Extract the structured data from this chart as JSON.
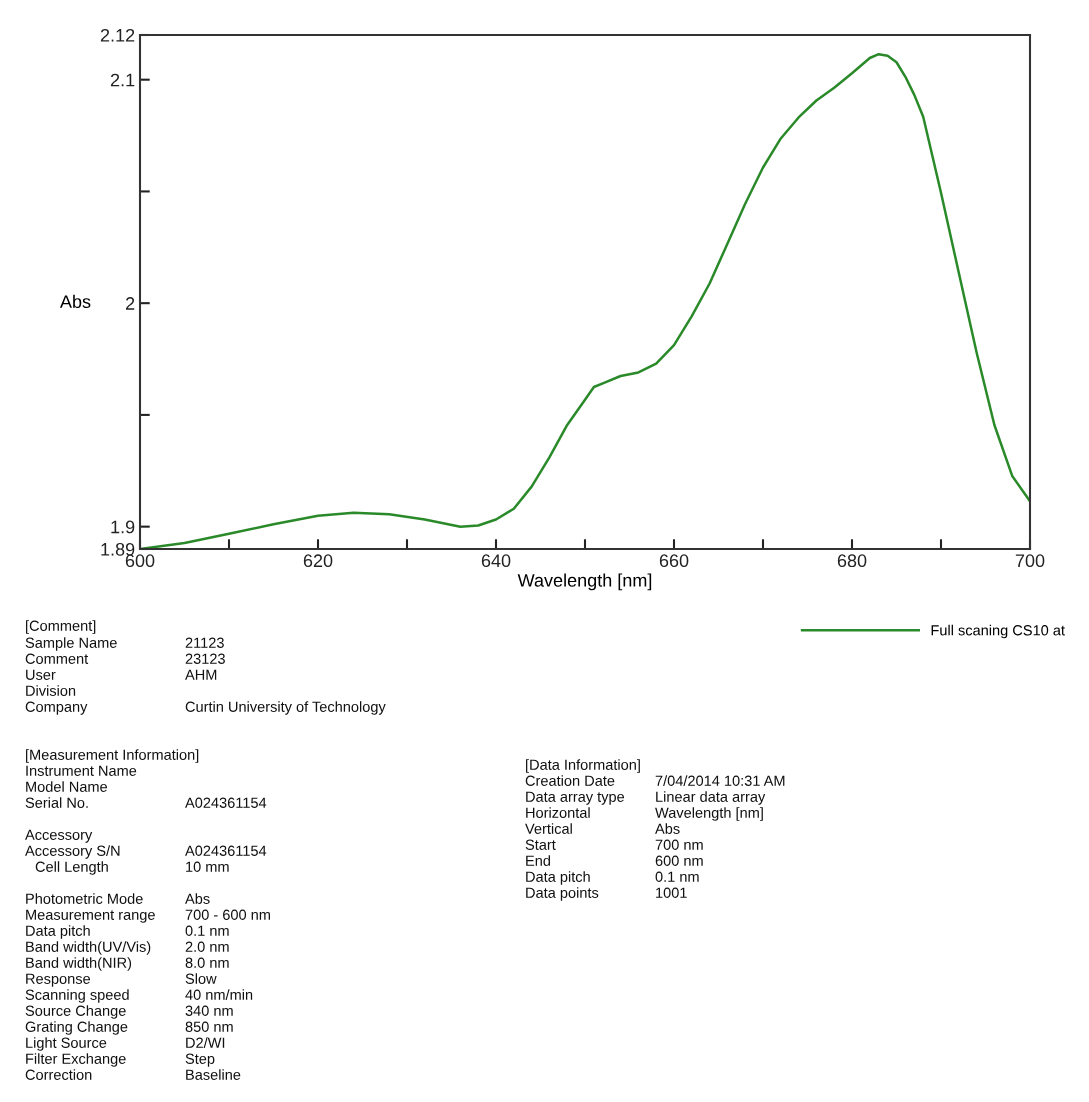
{
  "chart_data": {
    "type": "line",
    "xlabel": "Wavelength [nm]",
    "ylabel": "Abs",
    "xlim": [
      600,
      700
    ],
    "ylim": [
      1.89,
      2.12
    ],
    "xticks": [
      600,
      {
        "value": 610,
        "label": null
      },
      620,
      {
        "value": 630,
        "label": null
      },
      640,
      {
        "value": 650,
        "label": null
      },
      660,
      {
        "value": 670,
        "label": null
      },
      680,
      {
        "value": 690,
        "label": null
      },
      700
    ],
    "yticks": [
      1.89,
      1.9,
      {
        "value": 1.95,
        "label": null
      },
      2,
      {
        "value": 2.05,
        "label": null
      },
      2.1,
      2.12
    ],
    "grid": false,
    "legend": "bottom right",
    "marker": "none",
    "line_style": "solid",
    "series": [
      {
        "name": "Full scaning CS10 at",
        "color": "#2a8a2a",
        "x": [
          600,
          605,
          610,
          615,
          620,
          624,
          628,
          632,
          636,
          638,
          640,
          642,
          644,
          646,
          648,
          650,
          651,
          652,
          654,
          656,
          658,
          660,
          662,
          664,
          666,
          668,
          670,
          672,
          674,
          676,
          678,
          680,
          682,
          683,
          684,
          685,
          686,
          687,
          688,
          690,
          692,
          694,
          696,
          698,
          700
        ],
        "values": [
          1.89,
          1.8927,
          1.8968,
          1.9011,
          1.9049,
          1.9062,
          1.9055,
          1.9032,
          1.9,
          1.9005,
          1.9032,
          1.908,
          1.9179,
          1.931,
          1.9455,
          1.9568,
          1.9625,
          1.9641,
          1.9674,
          1.969,
          1.973,
          1.9812,
          1.9942,
          2.0088,
          2.0266,
          2.0445,
          2.0607,
          2.0737,
          2.0831,
          2.0907,
          2.0964,
          2.1029,
          2.1097,
          2.1114,
          2.1107,
          2.1078,
          2.1013,
          2.0932,
          2.0834,
          2.0494,
          2.0136,
          1.9779,
          1.9455,
          1.9227,
          1.9114
        ]
      }
    ],
    "annotations": [
      "[Comment]",
      "Sample Name",
      "21123",
      "Comment",
      "23123",
      "User",
      "AHM",
      "Division",
      "Company",
      "Curtin University of Technology",
      "[Measurement Information]",
      "Instrument Name",
      "Model Name",
      "Serial No.",
      "A024361154",
      "Accessory",
      "Accessory S/N",
      "A024361154",
      "Cell Length",
      "10 mm",
      "Photometric Mode",
      "Abs",
      "Measurement range",
      "700 - 600 nm",
      "Data pitch",
      "0.1 nm",
      "Band width(UV/Vis)",
      "2.0 nm",
      "Band width(NIR)",
      "8.0 nm",
      "Response",
      "Slow",
      "Scanning speed",
      "40 nm/min",
      "Source Change",
      "340 nm",
      "Grating Change",
      "850 nm",
      "Light Source",
      "D2/WI",
      "Filter Exchange",
      "Step",
      "Correction",
      "Baseline",
      "[Data Information]",
      "Creation Date",
      "7/04/2014 10:31 AM",
      "Data array type",
      "Linear data array",
      "Horizontal",
      "Wavelength [nm]",
      "Vertical",
      "Abs",
      "Start",
      "700 nm",
      "End",
      "600 nm",
      "Data pitch",
      "0.1 nm",
      "Data points",
      "1001"
    ]
  }
}
